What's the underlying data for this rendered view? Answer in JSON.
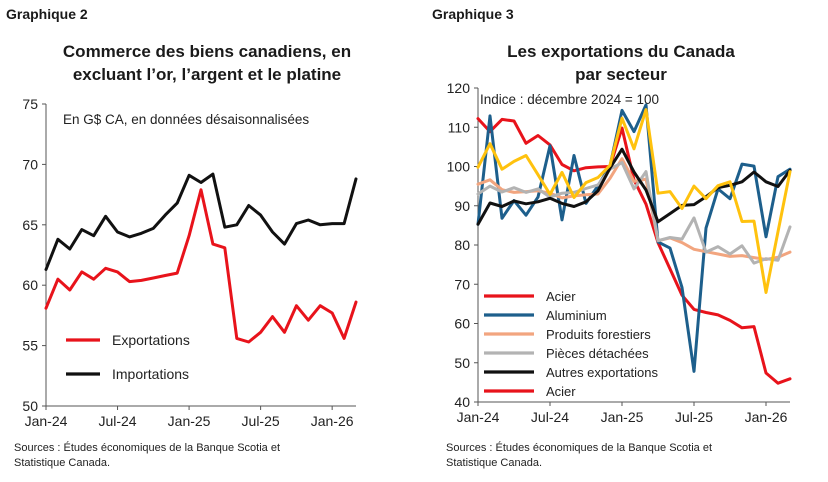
{
  "chart_data": [
    {
      "type": "line",
      "label": "Graphique 2",
      "title_lines": [
        "Commerce des biens canadiens, en",
        "excluant l’or, l’argent et le platine"
      ],
      "subtitle": "En G$ CA, en données désaisonnalisées",
      "ylim": [
        50,
        75
      ],
      "yticks": [
        50,
        55,
        60,
        65,
        70,
        75
      ],
      "xticks": [
        {
          "i": 0,
          "label": "Jan-24"
        },
        {
          "i": 6,
          "label": "Jul-24"
        },
        {
          "i": 12,
          "label": "Jan-25"
        },
        {
          "i": 18,
          "label": "Jul-25"
        },
        {
          "i": 24,
          "label": "Jan-26"
        }
      ],
      "legend_position": "bottom-left",
      "series": [
        {
          "name": "Exportations",
          "color": "#e8131b",
          "values": [
            58.1,
            60.5,
            59.6,
            61.1,
            60.5,
            61.4,
            61.1,
            60.3,
            60.4,
            60.6,
            60.8,
            61.0,
            64.1,
            67.9,
            63.4,
            63.1,
            55.6,
            55.3,
            56.1,
            57.4,
            56.1,
            58.3,
            57.1,
            58.3,
            57.7,
            55.6,
            58.6
          ]
        },
        {
          "name": "Importations",
          "color": "#111111",
          "values": [
            61.3,
            63.8,
            63.0,
            64.6,
            64.1,
            65.7,
            64.4,
            64.0,
            64.3,
            64.7,
            65.8,
            66.8,
            69.1,
            68.5,
            69.2,
            64.8,
            65.0,
            66.6,
            65.8,
            64.4,
            63.4,
            65.1,
            65.4,
            65.0,
            65.1,
            65.1,
            68.8
          ]
        }
      ],
      "sources": [
        "Sources : Études économiques de la Banque Scotia et",
        "Statistique Canada."
      ]
    },
    {
      "type": "line",
      "label": "Graphique 3",
      "title_lines": [
        "Les exportations du Canada",
        "par secteur"
      ],
      "subtitle": "Indice : décembre 2024 = 100",
      "ylim": [
        40,
        120
      ],
      "yticks": [
        40,
        50,
        60,
        70,
        80,
        90,
        100,
        110,
        120
      ],
      "xticks": [
        {
          "i": 0,
          "label": "Jan-24"
        },
        {
          "i": 6,
          "label": "Jul-24"
        },
        {
          "i": 12,
          "label": "Jan-25"
        },
        {
          "i": 18,
          "label": "Jul-25"
        },
        {
          "i": 24,
          "label": "Jan-26"
        }
      ],
      "legend_position": "bottom-left",
      "series": [
        {
          "name": "Acier",
          "color": "#e8131b",
          "values": [
            112.2,
            108.9,
            112.0,
            111.6,
            105.9,
            107.9,
            105.5,
            100.5,
            98.9,
            99.7,
            99.9,
            100.0,
            109.8,
            96.6,
            90.4,
            80.6,
            73.9,
            67.2,
            63.6,
            62.8,
            62.2,
            60.8,
            58.9,
            59.2,
            47.4,
            44.8,
            45.9
          ]
        },
        {
          "name": "Aluminium",
          "color": "#1d5f8c",
          "values": [
            85.3,
            112.9,
            86.8,
            91.3,
            87.6,
            92.2,
            105.3,
            86.4,
            102.8,
            90.6,
            95.1,
            100.1,
            114.3,
            108.9,
            115.7,
            80.8,
            79.2,
            69.2,
            47.8,
            84.3,
            94.3,
            91.8,
            100.6,
            100.1,
            82.1,
            97.4,
            99.3
          ]
        },
        {
          "name": "Produits forestiers",
          "color": "#f2a57f",
          "values": [
            95.5,
            96.6,
            94.1,
            93.4,
            93.6,
            93.8,
            93.2,
            92.0,
            92.5,
            92.8,
            93.0,
            97.0,
            102.0,
            96.2,
            96.8,
            81.1,
            81.8,
            80.6,
            78.9,
            78.3,
            77.7,
            77.1,
            77.3,
            76.8,
            76.3,
            76.9,
            78.2
          ]
        },
        {
          "name": "Pièces détachées",
          "color": "#b3b3b3",
          "values": [
            93.0,
            95.0,
            93.5,
            94.6,
            93.4,
            94.3,
            92.2,
            93.2,
            93.4,
            94.4,
            95.3,
            99.3,
            101.0,
            94.3,
            98.7,
            81.1,
            81.9,
            81.5,
            86.9,
            78.2,
            79.6,
            77.7,
            79.8,
            75.4,
            76.5,
            76.1,
            84.6
          ]
        },
        {
          "name": "Autres exportations",
          "color": "#111111",
          "values": [
            85.3,
            90.7,
            89.8,
            91.2,
            90.5,
            91.0,
            91.9,
            90.6,
            89.8,
            91.0,
            93.8,
            99.6,
            104.4,
            98.6,
            94.0,
            85.9,
            88.0,
            90.1,
            90.3,
            92.3,
            94.6,
            95.2,
            96.1,
            98.6,
            96.1,
            94.9,
            99.0
          ]
        },
        {
          "name": "Acier",
          "color": "#ffc20e",
          "values": [
            99.8,
            105.8,
            99.3,
            101.3,
            102.8,
            97.9,
            92.9,
            98.5,
            92.1,
            95.9,
            97.2,
            100.3,
            112.3,
            104.5,
            114.5,
            93.2,
            93.6,
            89.3,
            95.0,
            91.8,
            95.1,
            96.1,
            86.0,
            86.1,
            67.9,
            83.4,
            98.7
          ]
        }
      ],
      "legend_order": [
        0,
        1,
        2,
        3,
        4,
        0
      ],
      "sources": [
        "Sources : Études économiques de la Banque Scotia et",
        "Statistique Canada."
      ]
    }
  ]
}
